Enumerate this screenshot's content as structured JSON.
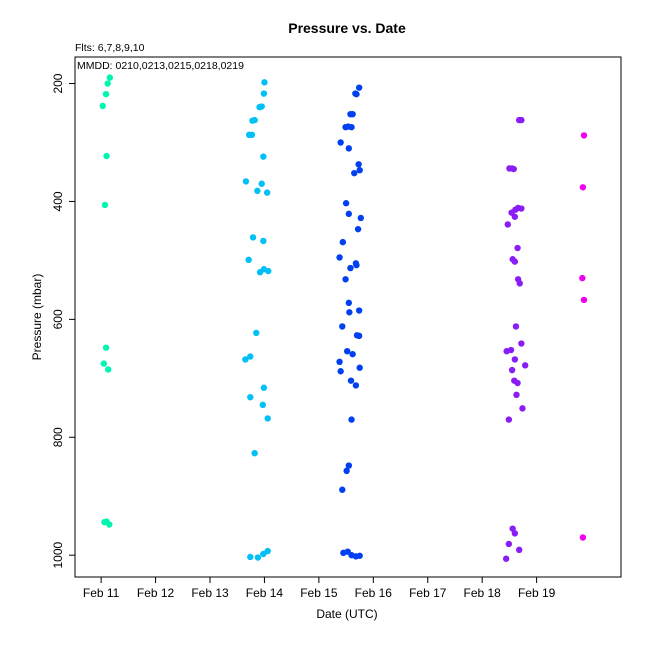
{
  "chart_data": {
    "type": "scatter",
    "title": "Pressure  vs. Date",
    "subtitle": "Flts: 6,7,8,9,10",
    "annotation": "MMDD: 0210,0213,0215,0218,0219",
    "xlabel": "Date (UTC)",
    "ylabel": "Pressure (mbar)",
    "x_units": "days since Feb 11 00:00 UTC",
    "xlim": [
      -0.48,
      9.55
    ],
    "ylim": [
      1037,
      155
    ],
    "y_inverted": true,
    "x_ticks": [
      {
        "value": 0,
        "label": "Feb 11"
      },
      {
        "value": 1,
        "label": "Feb 12"
      },
      {
        "value": 2,
        "label": "Feb 13"
      },
      {
        "value": 3,
        "label": "Feb 14"
      },
      {
        "value": 4,
        "label": "Feb 15"
      },
      {
        "value": 5,
        "label": "Feb 16"
      },
      {
        "value": 6,
        "label": "Feb 17"
      },
      {
        "value": 7,
        "label": "Feb 18"
      },
      {
        "value": 8,
        "label": "Feb 19"
      }
    ],
    "y_ticks": [
      200,
      400,
      600,
      800,
      1000
    ],
    "grid": false,
    "series": [
      {
        "name": "0210",
        "color": "#00f5b0",
        "points": [
          [
            0.16,
            190
          ],
          [
            0.12,
            200
          ],
          [
            0.09,
            218
          ],
          [
            0.03,
            238
          ],
          [
            0.1,
            323
          ],
          [
            0.07,
            406
          ],
          [
            0.09,
            648
          ],
          [
            0.05,
            675
          ],
          [
            0.13,
            685
          ],
          [
            0.06,
            944
          ],
          [
            0.1,
            943
          ],
          [
            0.15,
            948
          ]
        ]
      },
      {
        "name": "0213",
        "color": "#00c0f5",
        "points": [
          [
            3.0,
            198
          ],
          [
            2.99,
            217
          ],
          [
            2.95,
            239
          ],
          [
            2.91,
            240
          ],
          [
            2.82,
            262
          ],
          [
            2.78,
            263
          ],
          [
            2.72,
            287
          ],
          [
            2.77,
            287
          ],
          [
            2.98,
            324
          ],
          [
            2.66,
            366
          ],
          [
            2.95,
            370
          ],
          [
            2.87,
            382
          ],
          [
            3.05,
            385
          ],
          [
            2.79,
            461
          ],
          [
            2.98,
            467
          ],
          [
            2.71,
            499
          ],
          [
            2.92,
            520
          ],
          [
            2.99,
            515
          ],
          [
            3.07,
            518
          ],
          [
            2.85,
            623
          ],
          [
            2.74,
            663
          ],
          [
            2.65,
            668
          ],
          [
            2.74,
            732
          ],
          [
            2.99,
            716
          ],
          [
            2.97,
            745
          ],
          [
            3.06,
            768
          ],
          [
            2.82,
            827
          ],
          [
            2.74,
            1003
          ],
          [
            2.88,
            1004
          ],
          [
            2.98,
            998
          ],
          [
            3.06,
            993
          ]
        ]
      },
      {
        "name": "0215",
        "color": "#0040f0",
        "points": [
          [
            4.74,
            207
          ],
          [
            4.67,
            217
          ],
          [
            4.69,
            218
          ],
          [
            4.58,
            252
          ],
          [
            4.62,
            252
          ],
          [
            4.49,
            274
          ],
          [
            4.54,
            273
          ],
          [
            4.6,
            274
          ],
          [
            4.4,
            300
          ],
          [
            4.55,
            310
          ],
          [
            4.73,
            337
          ],
          [
            4.65,
            352
          ],
          [
            4.75,
            347
          ],
          [
            4.5,
            403
          ],
          [
            4.55,
            421
          ],
          [
            4.77,
            428
          ],
          [
            4.72,
            447
          ],
          [
            4.44,
            469
          ],
          [
            4.38,
            495
          ],
          [
            4.68,
            505
          ],
          [
            4.69,
            508
          ],
          [
            4.58,
            513
          ],
          [
            4.49,
            532
          ],
          [
            4.55,
            572
          ],
          [
            4.74,
            585
          ],
          [
            4.56,
            588
          ],
          [
            4.43,
            612
          ],
          [
            4.7,
            627
          ],
          [
            4.74,
            628
          ],
          [
            4.52,
            654
          ],
          [
            4.62,
            659
          ],
          [
            4.38,
            672
          ],
          [
            4.75,
            682
          ],
          [
            4.4,
            688
          ],
          [
            4.59,
            704
          ],
          [
            4.68,
            712
          ],
          [
            4.6,
            770
          ],
          [
            4.55,
            848
          ],
          [
            4.51,
            857
          ],
          [
            4.43,
            889
          ],
          [
            4.45,
            996
          ],
          [
            4.53,
            994
          ],
          [
            4.6,
            1000
          ],
          [
            4.68,
            1002
          ],
          [
            4.75,
            1001
          ]
        ]
      },
      {
        "name": "0218",
        "color": "#8a1cf5",
        "points": [
          [
            7.68,
            262
          ],
          [
            7.72,
            262
          ],
          [
            7.5,
            344
          ],
          [
            7.55,
            344
          ],
          [
            7.58,
            345
          ],
          [
            7.72,
            412
          ],
          [
            7.66,
            411
          ],
          [
            7.61,
            414
          ],
          [
            7.54,
            419
          ],
          [
            7.6,
            426
          ],
          [
            7.47,
            439
          ],
          [
            7.65,
            479
          ],
          [
            7.56,
            498
          ],
          [
            7.6,
            502
          ],
          [
            7.66,
            532
          ],
          [
            7.69,
            539
          ],
          [
            7.62,
            612
          ],
          [
            7.72,
            641
          ],
          [
            7.53,
            652
          ],
          [
            7.45,
            654
          ],
          [
            7.6,
            668
          ],
          [
            7.79,
            678
          ],
          [
            7.55,
            686
          ],
          [
            7.59,
            704
          ],
          [
            7.65,
            708
          ],
          [
            7.63,
            728
          ],
          [
            7.74,
            751
          ],
          [
            7.49,
            770
          ],
          [
            7.56,
            955
          ],
          [
            7.6,
            963
          ],
          [
            7.49,
            981
          ],
          [
            7.68,
            991
          ],
          [
            7.44,
            1006
          ]
        ]
      },
      {
        "name": "0219",
        "color": "#f000f0",
        "points": [
          [
            8.87,
            288
          ],
          [
            8.85,
            376
          ],
          [
            8.84,
            530
          ],
          [
            8.87,
            567
          ],
          [
            8.85,
            970
          ]
        ]
      }
    ]
  }
}
